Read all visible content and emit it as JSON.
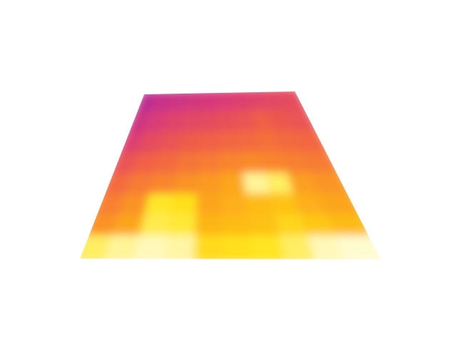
{
  "heatmap": {
    "description_free": true,
    "grid_rows": 8,
    "grid_cols": 10,
    "values": [
      [
        0.05,
        0.1,
        0.12,
        0.14,
        0.16,
        0.18,
        0.2,
        0.22,
        0.24,
        0.26
      ],
      [
        0.12,
        0.18,
        0.22,
        0.24,
        0.26,
        0.28,
        0.3,
        0.35,
        0.32,
        0.3
      ],
      [
        0.2,
        0.26,
        0.3,
        0.34,
        0.36,
        0.38,
        0.4,
        0.42,
        0.4,
        0.38
      ],
      [
        0.3,
        0.36,
        0.4,
        0.44,
        0.46,
        0.5,
        0.52,
        0.5,
        0.48,
        0.46
      ],
      [
        0.4,
        0.46,
        0.5,
        0.55,
        0.58,
        0.62,
        0.95,
        0.9,
        0.6,
        0.56
      ],
      [
        0.48,
        0.55,
        0.85,
        0.82,
        0.62,
        0.66,
        0.7,
        0.72,
        0.66,
        0.62
      ],
      [
        0.55,
        0.62,
        0.88,
        0.86,
        0.68,
        0.7,
        0.72,
        0.78,
        0.74,
        0.7
      ],
      [
        0.9,
        0.95,
        0.98,
        0.96,
        0.8,
        0.82,
        0.84,
        0.9,
        0.98,
        1.0
      ]
    ],
    "colormap": [
      "#b0289a",
      "#d83a7a",
      "#ef5a4a",
      "#f9852e",
      "#fdb119",
      "#ffe41a",
      "#fffbd0"
    ]
  }
}
